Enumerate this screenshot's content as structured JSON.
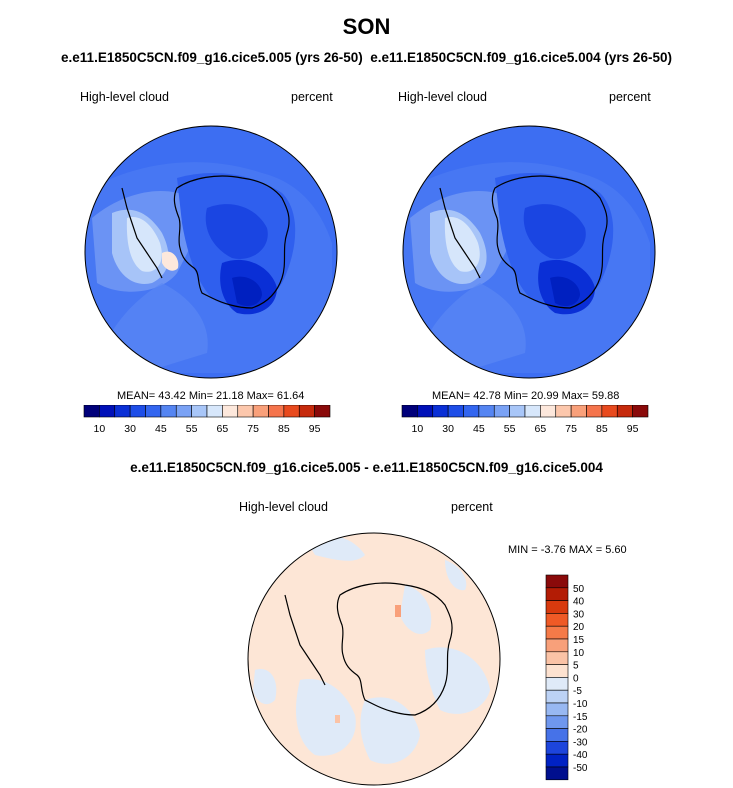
{
  "title": "SON",
  "top_subtitle": "e.e11.E1850C5CN.f09_g16.cice5.005 (yrs 26-50)  e.e11.E1850C5CN.f09_g16.cice5.004 (yrs 26-50)",
  "diff_subtitle": "e.e11.E1850C5CN.f09_g16.cice5.005 - e.e11.E1850C5CN.f09_g16.cice5.004",
  "panels": [
    {
      "label_left": "High-level cloud",
      "label_right": "percent",
      "stats_text": "MEAN=  43.42  Min=  21.18  Max=  61.64",
      "mean": 43.42,
      "min": 21.18,
      "max": 61.64
    },
    {
      "label_left": "High-level cloud",
      "label_right": "percent",
      "stats_text": "MEAN=  42.78  Min=  20.99  Max=  59.88",
      "mean": 42.78,
      "min": 20.99,
      "max": 59.88
    }
  ],
  "diff_panel": {
    "label_left": "High-level cloud",
    "label_right": "percent",
    "stats_text": "MIN =  -3.76 MAX =   5.60",
    "min": -3.76,
    "max": 5.6
  },
  "colorbar_main": {
    "tick_labels": [
      "10",
      "30",
      "45",
      "55",
      "65",
      "75",
      "85",
      "95"
    ],
    "colors": [
      "#00007a",
      "#0010b8",
      "#0a2fd6",
      "#1e4ee8",
      "#3366f0",
      "#5585f2",
      "#7aa2f5",
      "#a8c6f8",
      "#d7e7fb",
      "#fde8dc",
      "#fcc7ac",
      "#f9a07a",
      "#f5744c",
      "#e84a1e",
      "#c62a0c",
      "#8a0a0a"
    ]
  },
  "colorbar_diff": {
    "tick_labels": [
      "50",
      "40",
      "30",
      "20",
      "15",
      "10",
      "5",
      "0",
      "-5",
      "-10",
      "-15",
      "-20",
      "-30",
      "-40",
      "-50"
    ],
    "colors": [
      "#8a0a0a",
      "#b31c05",
      "#d83a0e",
      "#ef5a26",
      "#f57a48",
      "#f8a07a",
      "#fbc3a6",
      "#fde2d0",
      "#dfeaf8",
      "#bcd2f5",
      "#98b8f2",
      "#6f97ee",
      "#4672e8",
      "#1d45dc",
      "#0022c4",
      "#000f8e"
    ]
  }
}
